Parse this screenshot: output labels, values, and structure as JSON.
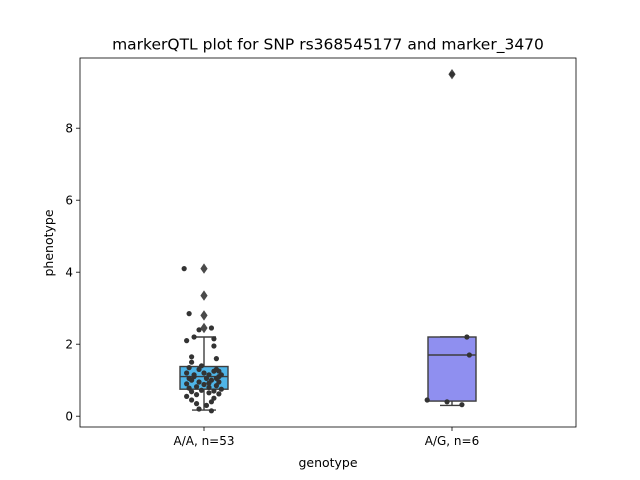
{
  "chart_data": {
    "type": "box",
    "title": "markerQTL plot for SNP rs368545177 and marker_3470",
    "xlabel": "genotype",
    "ylabel": "phenotype",
    "ylim": [
      -0.3,
      9.95
    ],
    "yticks": [
      0,
      2,
      4,
      6,
      8
    ],
    "grid": false,
    "categories": [
      "A/A, n=53",
      "A/G, n=6"
    ],
    "boxes": [
      {
        "category": "A/A, n=53",
        "color": "#4fb5e8",
        "q1": 0.75,
        "median": 1.1,
        "q3": 1.38,
        "whisker_low": 0.17,
        "whisker_high": 2.2,
        "outliers": [
          2.45,
          2.8,
          3.35,
          4.1
        ],
        "points": [
          [
            -0.08,
            4.1
          ],
          [
            -0.06,
            2.85
          ],
          [
            -0.07,
            2.1
          ],
          [
            -0.04,
            2.2
          ],
          [
            0.04,
            2.15
          ],
          [
            0.04,
            1.95
          ],
          [
            0.03,
            2.45
          ],
          [
            -0.02,
            2.4
          ],
          [
            -0.05,
            1.65
          ],
          [
            -0.05,
            1.5
          ],
          [
            0.05,
            1.6
          ],
          [
            -0.06,
            1.35
          ],
          [
            0.06,
            1.25
          ],
          [
            -0.02,
            1.3
          ],
          [
            0.04,
            1.25
          ],
          [
            -0.07,
            1.2
          ],
          [
            0.02,
            1.15
          ],
          [
            -0.04,
            1.1
          ],
          [
            0.06,
            1.1
          ],
          [
            0.01,
            1.05
          ],
          [
            -0.05,
            1.0
          ],
          [
            0.03,
            1.0
          ],
          [
            -0.02,
            0.95
          ],
          [
            0.06,
            0.95
          ],
          [
            -0.07,
            0.9
          ],
          [
            0.0,
            0.88
          ],
          [
            0.05,
            0.85
          ],
          [
            -0.03,
            0.82
          ],
          [
            0.02,
            0.8
          ],
          [
            -0.06,
            0.78
          ],
          [
            0.07,
            0.75
          ],
          [
            -0.01,
            0.72
          ],
          [
            0.04,
            0.7
          ],
          [
            -0.05,
            0.68
          ],
          [
            0.02,
            0.65
          ],
          [
            0.06,
            0.62
          ],
          [
            -0.03,
            0.6
          ],
          [
            0.0,
            1.2
          ],
          [
            -0.04,
            1.15
          ],
          [
            0.05,
            1.05
          ],
          [
            -0.07,
            0.55
          ],
          [
            0.04,
            0.5
          ],
          [
            -0.05,
            0.45
          ],
          [
            0.03,
            0.4
          ],
          [
            -0.02,
            0.2
          ],
          [
            0.03,
            0.15
          ],
          [
            0.01,
            0.3
          ],
          [
            -0.03,
            0.35
          ],
          [
            0.05,
            1.3
          ],
          [
            -0.06,
            1.05
          ],
          [
            0.02,
            0.92
          ],
          [
            0.07,
            1.15
          ],
          [
            -0.01,
            1.4
          ]
        ]
      },
      {
        "category": "A/G, n=6",
        "color": "#8f8ff0",
        "q1": 0.42,
        "median": 1.7,
        "q3": 2.2,
        "whisker_low": 0.3,
        "whisker_high": 2.2,
        "outliers": [
          9.5
        ],
        "points": [
          [
            0.06,
            2.2
          ],
          [
            0.07,
            1.7
          ],
          [
            -0.1,
            0.45
          ],
          [
            0.04,
            0.32
          ],
          [
            -0.02,
            0.4
          ],
          [
            0.0,
            9.5
          ]
        ]
      }
    ]
  }
}
